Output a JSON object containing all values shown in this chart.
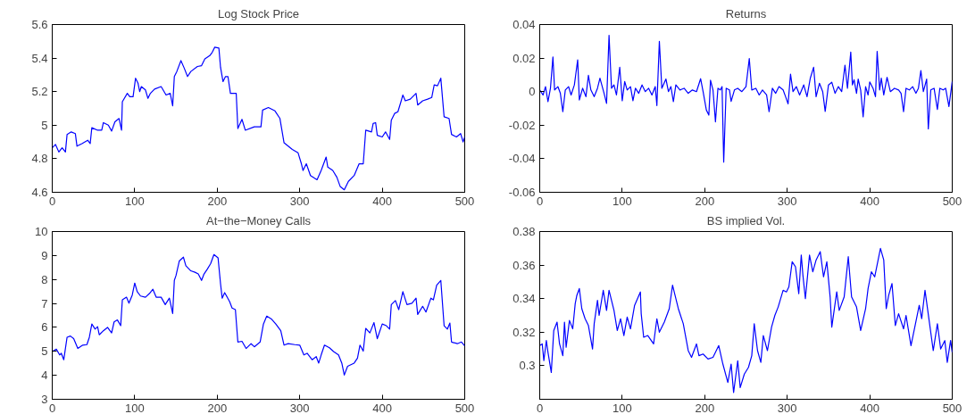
{
  "chart_data": [
    {
      "type": "line",
      "title": "Log Stock Price",
      "xlim": [
        0,
        500
      ],
      "xticks": [
        0,
        100,
        200,
        300,
        400,
        500
      ],
      "ylim": [
        4.6,
        5.6
      ],
      "yticks": [
        4.6,
        4.8,
        5,
        5.2,
        5.4,
        5.6
      ],
      "grid": false,
      "series": [
        {
          "color": "#0000ff",
          "x": [
            0,
            4,
            8,
            12,
            16,
            18,
            23,
            28,
            30,
            36,
            43,
            46,
            48,
            55,
            60,
            62,
            68,
            72,
            76,
            81,
            84,
            85,
            91,
            94,
            98,
            101,
            104,
            106,
            108,
            113,
            116,
            119,
            124,
            132,
            138,
            143,
            146,
            148,
            151,
            156,
            160,
            164,
            168,
            176,
            181,
            185,
            191,
            194,
            197,
            202,
            204,
            207,
            210,
            213,
            216,
            223,
            225,
            230,
            234,
            245,
            253,
            255,
            262,
            270,
            276,
            281,
            291,
            298,
            302,
            304,
            308,
            313,
            321,
            326,
            332,
            334,
            340,
            345,
            349,
            354,
            359,
            366,
            372,
            377,
            380,
            387,
            389,
            392,
            394,
            400,
            404,
            409,
            411,
            415,
            419,
            423,
            425,
            428,
            434,
            441,
            443,
            449,
            455,
            460,
            463,
            467,
            471,
            475,
            481,
            484,
            490,
            495,
            498,
            500
          ],
          "values": [
            4.865,
            4.885,
            4.84,
            4.865,
            4.84,
            4.945,
            4.96,
            4.95,
            4.875,
            4.89,
            4.91,
            4.89,
            4.985,
            4.97,
            4.97,
            5.015,
            5.0,
            4.965,
            5.02,
            5.04,
            4.97,
            5.14,
            5.19,
            5.17,
            5.17,
            5.28,
            5.25,
            5.2,
            5.23,
            5.21,
            5.16,
            5.19,
            5.215,
            5.23,
            5.18,
            5.19,
            5.115,
            5.29,
            5.32,
            5.385,
            5.34,
            5.29,
            5.32,
            5.35,
            5.355,
            5.395,
            5.415,
            5.435,
            5.465,
            5.46,
            5.345,
            5.26,
            5.29,
            5.29,
            5.19,
            5.19,
            4.98,
            5.035,
            4.97,
            4.99,
            4.99,
            5.09,
            5.105,
            5.085,
            5.04,
            4.895,
            4.855,
            4.835,
            4.77,
            4.73,
            4.77,
            4.7,
            4.675,
            4.73,
            4.81,
            4.75,
            4.73,
            4.69,
            4.635,
            4.615,
            4.665,
            4.7,
            4.77,
            4.77,
            4.97,
            4.96,
            5.01,
            5.015,
            4.94,
            4.93,
            4.96,
            4.915,
            5.03,
            5.07,
            5.08,
            5.145,
            5.18,
            5.145,
            5.155,
            5.19,
            5.12,
            5.145,
            5.155,
            5.165,
            5.24,
            5.235,
            5.28,
            5.05,
            5.04,
            4.945,
            4.93,
            4.95,
            4.9,
            4.93
          ]
        }
      ]
    },
    {
      "type": "line",
      "title": "Returns",
      "xlim": [
        0,
        500
      ],
      "xticks": [
        0,
        100,
        200,
        300,
        400,
        500
      ],
      "ylim": [
        -0.06,
        0.04
      ],
      "yticks": [
        -0.06,
        -0.04,
        -0.02,
        0,
        0.02,
        0.04
      ],
      "grid": false,
      "series": [
        {
          "color": "#0000ff",
          "x": [
            0,
            4,
            7,
            10,
            13,
            16,
            18,
            22,
            25,
            28,
            31,
            35,
            38,
            42,
            46,
            48,
            52,
            56,
            59,
            62,
            66,
            70,
            73,
            78,
            81,
            84,
            87,
            90,
            93,
            97,
            100,
            103,
            106,
            110,
            113,
            116,
            120,
            124,
            128,
            132,
            136,
            140,
            142,
            145,
            148,
            153,
            156,
            159,
            162,
            165,
            170,
            175,
            180,
            185,
            190,
            195,
            198,
            202,
            205,
            207,
            210,
            213,
            216,
            219,
            221,
            223,
            226,
            230,
            232,
            236,
            240,
            245,
            250,
            254,
            257,
            262,
            266,
            270,
            275,
            278,
            282,
            286,
            290,
            295,
            298,
            301,
            304,
            307,
            311,
            315,
            320,
            324,
            328,
            332,
            335,
            339,
            343,
            346,
            350,
            354,
            358,
            362,
            366,
            370,
            373,
            377,
            379,
            381,
            384,
            386,
            389,
            392,
            395,
            398,
            400,
            404,
            407,
            409,
            412,
            414,
            417,
            421,
            425,
            430,
            435,
            438,
            441,
            444,
            448,
            452,
            456,
            459,
            462,
            465,
            469,
            471,
            474,
            478,
            482,
            485,
            489,
            492,
            496,
            500
          ],
          "values": [
            0.001,
            -0.002,
            0.003,
            -0.006,
            0.002,
            0.0207,
            0.001,
            0.003,
            -0.001,
            -0.012,
            0.001,
            0.003,
            -0.002,
            0.004,
            0.019,
            -0.005,
            0.002,
            -0.003,
            0.0097,
            0.001,
            -0.003,
            0.002,
            0.008,
            -0.001,
            -0.007,
            0.0336,
            0.002,
            0.004,
            -0.002,
            0.0145,
            -0.0054,
            0.006,
            0.001,
            0.003,
            -0.0054,
            0.002,
            -0.001,
            0.004,
            0.0,
            0.002,
            -0.002,
            0.003,
            -0.0083,
            0.03,
            0.002,
            0.0075,
            0.0,
            0.003,
            -0.006,
            0.004,
            0.001,
            0.002,
            -0.001,
            0.001,
            0.0,
            0.0077,
            0.0,
            -0.011,
            -0.014,
            0.0068,
            0.001,
            -0.018,
            0.002,
            0.001,
            0.003,
            -0.042,
            0.002,
            0.001,
            -0.0058,
            0.001,
            0.002,
            0.0,
            0.003,
            0.0197,
            0.001,
            0.002,
            -0.002,
            0.001,
            -0.002,
            -0.012,
            0.002,
            -0.001,
            0.003,
            0.001,
            -0.003,
            -0.0073,
            0.0104,
            0.0,
            0.003,
            -0.002,
            0.004,
            -0.003,
            0.0081,
            0.0145,
            -0.003,
            0.005,
            0.0,
            -0.0118,
            0.004,
            0.0056,
            -0.001,
            0.003,
            0.0,
            0.0158,
            0.002,
            0.0236,
            0.004,
            0.0071,
            -0.001,
            0.0075,
            0.001,
            -0.015,
            0.003,
            -0.002,
            0.0058,
            0.002,
            -0.003,
            0.024,
            0.001,
            0.0081,
            -0.002,
            0.0085,
            0.0,
            0.002,
            0.001,
            -0.001,
            -0.012,
            0.002,
            0.001,
            0.003,
            -0.001,
            0.002,
            0.0126,
            0.0,
            0.0075,
            -0.0222,
            0.001,
            0.002,
            -0.0106,
            0.002,
            0.001,
            0.002,
            -0.0089,
            0.006
          ]
        }
      ]
    },
    {
      "type": "line",
      "title": "At−the−Money Calls",
      "xlim": [
        0,
        500
      ],
      "xticks": [
        0,
        100,
        200,
        300,
        400,
        500
      ],
      "ylim": [
        3,
        10
      ],
      "yticks": [
        3,
        4,
        5,
        6,
        7,
        8,
        9,
        10
      ],
      "grid": false,
      "series": [
        {
          "color": "#0000ff",
          "x": [
            0,
            5,
            9,
            11,
            14,
            18,
            22,
            26,
            31,
            37,
            42,
            45,
            48,
            52,
            55,
            57,
            62,
            67,
            72,
            75,
            79,
            83,
            85,
            90,
            93,
            97,
            100,
            103,
            107,
            113,
            118,
            122,
            126,
            132,
            137,
            142,
            146,
            148,
            150,
            154,
            159,
            162,
            168,
            173,
            177,
            181,
            184,
            188,
            192,
            196,
            201,
            204,
            206,
            209,
            215,
            218,
            222,
            225,
            230,
            235,
            241,
            245,
            252,
            256,
            260,
            266,
            271,
            277,
            281,
            286,
            294,
            300,
            305,
            309,
            315,
            320,
            323,
            326,
            330,
            336,
            341,
            347,
            351,
            354,
            358,
            366,
            370,
            373,
            377,
            380,
            385,
            390,
            394,
            400,
            405,
            409,
            411,
            416,
            420,
            425,
            430,
            436,
            441,
            443,
            449,
            453,
            459,
            462,
            466,
            471,
            475,
            479,
            482,
            484,
            491,
            496,
            500
          ],
          "values": [
            4.99,
            5.09,
            4.85,
            4.92,
            4.65,
            5.59,
            5.64,
            5.53,
            5.12,
            5.26,
            5.28,
            5.59,
            6.14,
            5.93,
            6.03,
            5.69,
            5.86,
            6.0,
            5.77,
            6.23,
            6.31,
            6.07,
            7.15,
            7.26,
            7.01,
            7.35,
            7.85,
            7.49,
            7.31,
            7.26,
            7.42,
            7.59,
            7.26,
            7.26,
            6.95,
            7.22,
            6.58,
            7.96,
            8.16,
            8.77,
            8.93,
            8.57,
            8.36,
            8.3,
            8.23,
            7.96,
            8.23,
            8.43,
            8.66,
            9.04,
            8.9,
            7.82,
            7.22,
            7.45,
            7.08,
            6.81,
            6.74,
            5.39,
            5.42,
            5.12,
            5.32,
            5.19,
            5.39,
            6.14,
            6.47,
            6.34,
            6.14,
            5.86,
            5.26,
            5.32,
            5.28,
            5.26,
            4.85,
            4.92,
            4.65,
            4.78,
            4.51,
            4.85,
            5.26,
            5.15,
            4.99,
            4.85,
            4.51,
            4.01,
            4.38,
            4.51,
            4.72,
            5.26,
            5.01,
            5.96,
            5.77,
            6.2,
            5.53,
            6.14,
            6.07,
            5.93,
            6.95,
            7.12,
            6.74,
            7.49,
            6.95,
            7.01,
            7.22,
            6.54,
            6.88,
            6.64,
            7.22,
            7.15,
            7.76,
            7.96,
            6.07,
            5.93,
            6.18,
            5.39,
            5.32,
            5.39,
            5.23
          ]
        }
      ]
    },
    {
      "type": "line",
      "title": "BS implied Vol.",
      "xlim": [
        0,
        500
      ],
      "xticks": [
        0,
        100,
        200,
        300,
        400,
        500
      ],
      "ylim": [
        0.28,
        0.38
      ],
      "yticks": [
        0.3,
        0.32,
        0.34,
        0.36,
        0.38
      ],
      "grid": false,
      "series": [
        {
          "color": "#0000ff",
          "x": [
            0,
            3,
            5,
            8,
            10,
            14,
            17,
            21,
            24,
            28,
            30,
            32,
            36,
            40,
            43,
            45,
            48,
            51,
            55,
            59,
            64,
            66,
            70,
            72,
            77,
            81,
            84,
            90,
            94,
            98,
            102,
            106,
            110,
            115,
            122,
            123,
            126,
            131,
            138,
            142,
            145,
            151,
            157,
            161,
            164,
            168,
            174,
            180,
            184,
            190,
            193,
            198,
            204,
            210,
            217,
            222,
            228,
            232,
            235,
            240,
            243,
            248,
            253,
            257,
            260,
            264,
            268,
            271,
            276,
            281,
            285,
            289,
            295,
            299,
            302,
            306,
            310,
            314,
            317,
            319,
            322,
            327,
            331,
            335,
            340,
            344,
            348,
            352,
            354,
            360,
            363,
            369,
            374,
            378,
            384,
            389,
            395,
            398,
            402,
            406,
            413,
            417,
            420,
            423,
            427,
            431,
            435,
            441,
            444,
            450,
            455,
            460,
            463,
            467,
            472,
            477,
            482,
            486,
            491,
            494,
            498,
            500
          ],
          "values": [
            0.312,
            0.313,
            0.303,
            0.315,
            0.308,
            0.296,
            0.321,
            0.326,
            0.313,
            0.306,
            0.326,
            0.311,
            0.327,
            0.322,
            0.337,
            0.342,
            0.346,
            0.334,
            0.328,
            0.324,
            0.31,
            0.325,
            0.339,
            0.33,
            0.345,
            0.333,
            0.345,
            0.333,
            0.321,
            0.328,
            0.318,
            0.329,
            0.322,
            0.336,
            0.344,
            0.331,
            0.317,
            0.318,
            0.313,
            0.328,
            0.32,
            0.326,
            0.334,
            0.348,
            0.342,
            0.334,
            0.325,
            0.309,
            0.305,
            0.313,
            0.306,
            0.307,
            0.304,
            0.305,
            0.312,
            0.301,
            0.29,
            0.301,
            0.284,
            0.303,
            0.287,
            0.295,
            0.299,
            0.306,
            0.325,
            0.309,
            0.302,
            0.318,
            0.309,
            0.323,
            0.33,
            0.335,
            0.345,
            0.344,
            0.347,
            0.362,
            0.359,
            0.343,
            0.366,
            0.354,
            0.34,
            0.366,
            0.356,
            0.363,
            0.368,
            0.353,
            0.362,
            0.341,
            0.323,
            0.344,
            0.333,
            0.341,
            0.365,
            0.341,
            0.335,
            0.321,
            0.334,
            0.346,
            0.356,
            0.353,
            0.37,
            0.363,
            0.334,
            0.342,
            0.349,
            0.324,
            0.331,
            0.322,
            0.33,
            0.312,
            0.324,
            0.336,
            0.328,
            0.345,
            0.327,
            0.309,
            0.325,
            0.31,
            0.315,
            0.302,
            0.315,
            0.308
          ]
        }
      ]
    }
  ]
}
